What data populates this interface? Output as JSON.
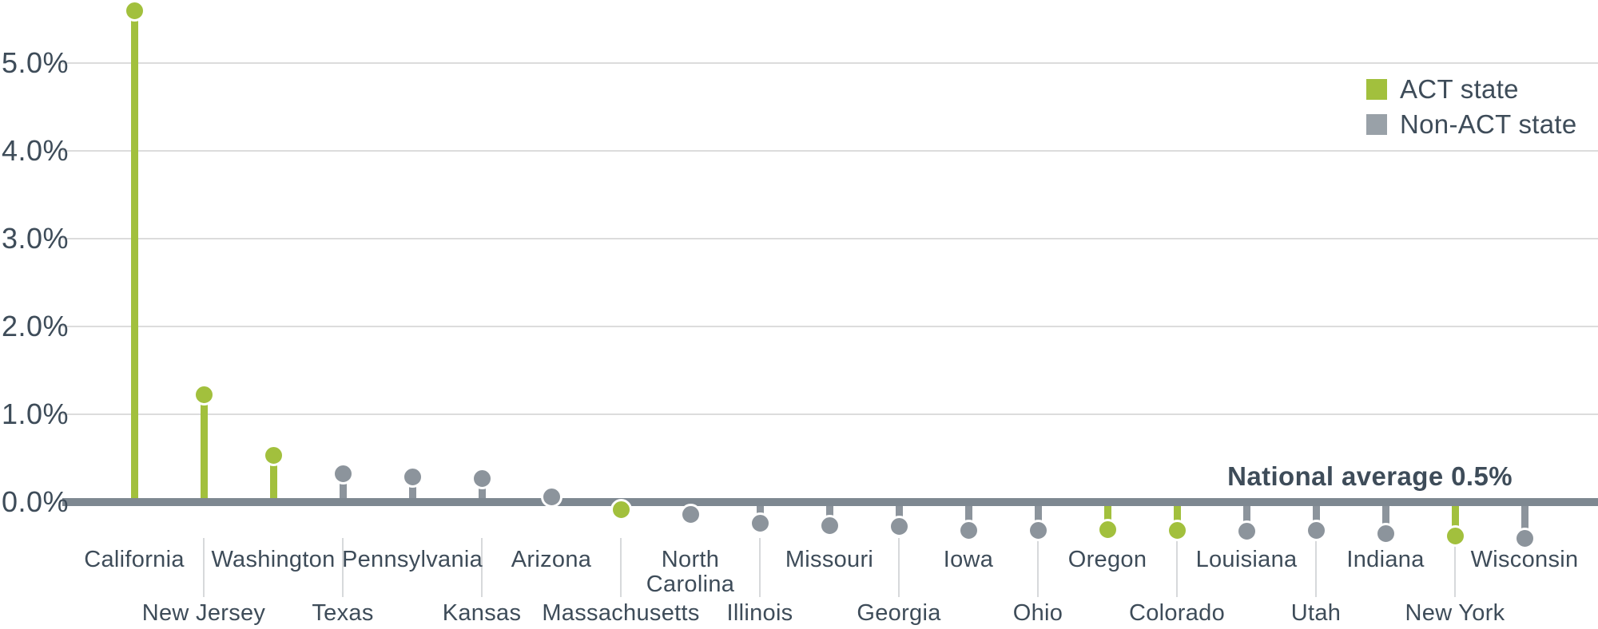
{
  "colors": {
    "act_green": "#a2c03d",
    "non_act_gray": "#8c949c",
    "axis": "#7e8891",
    "gridline": "#dcdcdc",
    "leader_line": "#d7d9db",
    "text": "#3e4c59",
    "dot_ring": "#ffffff"
  },
  "chart_data": {
    "type": "lollipop",
    "title": "",
    "unit": "percent",
    "grid": "horizontal",
    "ylim": [
      -0.75,
      5.72
    ],
    "legend_position": "top-right",
    "annotation": "National average 0.5%",
    "legend": [
      {
        "label": "ACT state",
        "color": "#a2c03d"
      },
      {
        "label": "Non-ACT state",
        "color": "#99a1a8"
      }
    ],
    "y_ticks": [
      {
        "label": "0.0%",
        "value": 0
      },
      {
        "label": "1.0%",
        "value": 1
      },
      {
        "label": "2.0%",
        "value": 2
      },
      {
        "label": "3.0%",
        "value": 3
      },
      {
        "label": "4.0%",
        "value": 4
      },
      {
        "label": "5.0%",
        "value": 5
      }
    ],
    "states": [
      {
        "name": "California",
        "value": 5.6,
        "group": "ACT state"
      },
      {
        "name": "New Jersey",
        "value": 1.22,
        "group": "ACT state"
      },
      {
        "name": "Washington",
        "value": 0.53,
        "group": "ACT state"
      },
      {
        "name": "Texas",
        "value": 0.32,
        "group": "Non-ACT state"
      },
      {
        "name": "Pennsylvania",
        "value": 0.29,
        "group": "Non-ACT state"
      },
      {
        "name": "Kansas",
        "value": 0.27,
        "group": "Non-ACT state"
      },
      {
        "name": "Arizona",
        "value": 0.06,
        "group": "Non-ACT state"
      },
      {
        "name": "Massachusetts",
        "value": -0.09,
        "group": "ACT state"
      },
      {
        "name": "North Carolina",
        "value": -0.14,
        "group": "Non-ACT state"
      },
      {
        "name": "Illinois",
        "value": -0.24,
        "group": "Non-ACT state"
      },
      {
        "name": "Missouri",
        "value": -0.27,
        "group": "Non-ACT state"
      },
      {
        "name": "Georgia",
        "value": -0.28,
        "group": "Non-ACT state"
      },
      {
        "name": "Iowa",
        "value": -0.32,
        "group": "Non-ACT state"
      },
      {
        "name": "Ohio",
        "value": -0.32,
        "group": "Non-ACT state"
      },
      {
        "name": "Oregon",
        "value": -0.31,
        "group": "ACT state"
      },
      {
        "name": "Colorado",
        "value": -0.32,
        "group": "ACT state"
      },
      {
        "name": "Louisiana",
        "value": -0.33,
        "group": "Non-ACT state"
      },
      {
        "name": "Utah",
        "value": -0.32,
        "group": "Non-ACT state"
      },
      {
        "name": "Indiana",
        "value": -0.36,
        "group": "Non-ACT state"
      },
      {
        "name": "New York",
        "value": -0.39,
        "group": "ACT state"
      },
      {
        "name": "Wisconsin",
        "value": -0.41,
        "group": "Non-ACT state"
      }
    ]
  }
}
